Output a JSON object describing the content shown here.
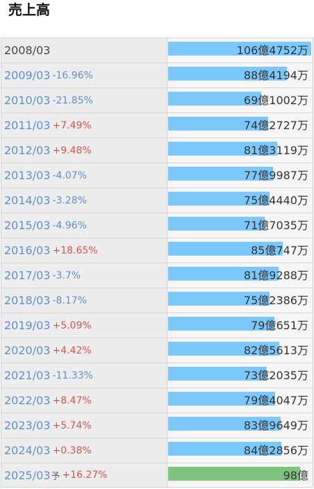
{
  "title": "売上高",
  "chart_data": {
    "type": "table",
    "max_value_oku": 106.4752,
    "rows": [
      {
        "year": "2008/03",
        "yoy": "",
        "forecast": "",
        "value": "106億4752万",
        "value_oku": 106.4752
      },
      {
        "year": "2009/03",
        "yoy": "-16.96%",
        "forecast": "",
        "value": "88億4194万",
        "value_oku": 88.4194
      },
      {
        "year": "2010/03",
        "yoy": "-21.85%",
        "forecast": "",
        "value": "69億1002万",
        "value_oku": 69.1002
      },
      {
        "year": "2011/03",
        "yoy": "+7.49%",
        "forecast": "",
        "value": "74億2727万",
        "value_oku": 74.2727
      },
      {
        "year": "2012/03",
        "yoy": "+9.48%",
        "forecast": "",
        "value": "81億3119万",
        "value_oku": 81.3119
      },
      {
        "year": "2013/03",
        "yoy": "-4.07%",
        "forecast": "",
        "value": "77億9987万",
        "value_oku": 77.9987
      },
      {
        "year": "2014/03",
        "yoy": "-3.28%",
        "forecast": "",
        "value": "75億4440万",
        "value_oku": 75.444
      },
      {
        "year": "2015/03",
        "yoy": "-4.96%",
        "forecast": "",
        "value": "71億7035万",
        "value_oku": 71.7035
      },
      {
        "year": "2016/03",
        "yoy": "+18.65%",
        "forecast": "",
        "value": "85億747万",
        "value_oku": 85.0747
      },
      {
        "year": "2017/03",
        "yoy": "-3.7%",
        "forecast": "",
        "value": "81億9288万",
        "value_oku": 81.9288
      },
      {
        "year": "2018/03",
        "yoy": "-8.17%",
        "forecast": "",
        "value": "75億2386万",
        "value_oku": 75.2386
      },
      {
        "year": "2019/03",
        "yoy": "+5.09%",
        "forecast": "",
        "value": "79億651万",
        "value_oku": 79.0651
      },
      {
        "year": "2020/03",
        "yoy": "+4.42%",
        "forecast": "",
        "value": "82億5613万",
        "value_oku": 82.5613
      },
      {
        "year": "2021/03",
        "yoy": "-11.33%",
        "forecast": "",
        "value": "73億2035万",
        "value_oku": 73.2035
      },
      {
        "year": "2022/03",
        "yoy": "+8.47%",
        "forecast": "",
        "value": "79億4047万",
        "value_oku": 79.4047
      },
      {
        "year": "2023/03",
        "yoy": "+5.74%",
        "forecast": "",
        "value": "83億9649万",
        "value_oku": 83.9649
      },
      {
        "year": "2024/03",
        "yoy": "+0.38%",
        "forecast": "",
        "value": "84億2856万",
        "value_oku": 84.2856
      },
      {
        "year": "2025/03",
        "yoy": "+16.27%",
        "forecast": "予",
        "value": "98億",
        "value_oku": 98.0
      }
    ]
  },
  "colors": {
    "bar": "#7cc8fb",
    "forecast_bar": "#7dc47f",
    "positive": "#d9534f",
    "negative": "#5c8fd6"
  }
}
